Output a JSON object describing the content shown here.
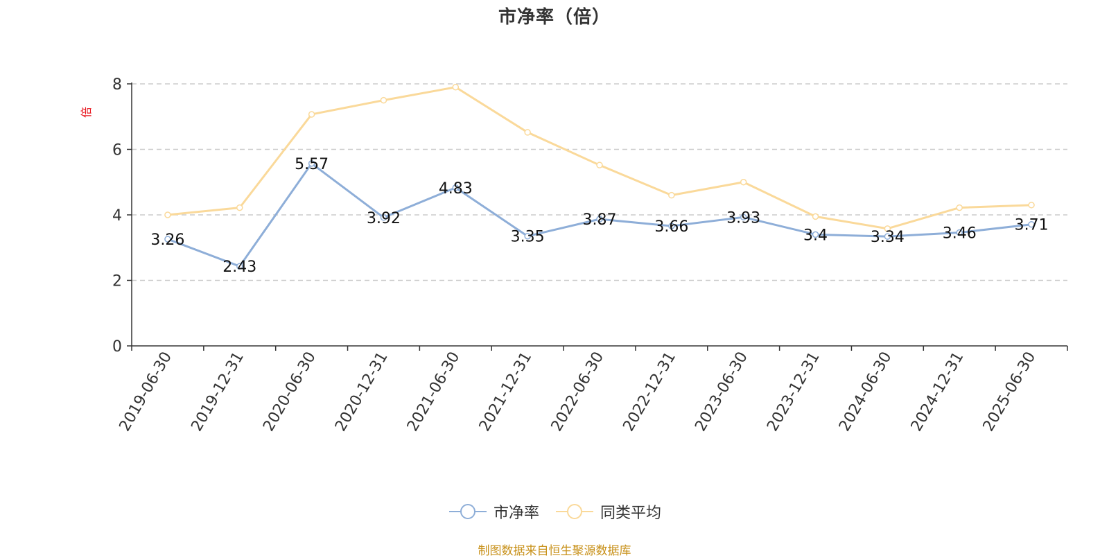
{
  "chart_data": {
    "type": "line",
    "title": "市净率（倍）",
    "ylabel": "倍",
    "xlabel": "",
    "ylim": [
      0,
      8
    ],
    "yticks": [
      0,
      2,
      4,
      6,
      8
    ],
    "grid": true,
    "legend_position": "bottom",
    "categories": [
      "2019-06-30",
      "2019-12-31",
      "2020-06-30",
      "2020-12-31",
      "2021-06-30",
      "2021-12-31",
      "2022-06-30",
      "2022-12-31",
      "2023-06-30",
      "2023-12-31",
      "2024-06-30",
      "2024-12-31",
      "2025-06-30"
    ],
    "series": [
      {
        "name": "市净率",
        "color": "#8eaed8",
        "show_labels": true,
        "values": [
          3.26,
          2.43,
          5.57,
          3.92,
          4.83,
          3.35,
          3.87,
          3.66,
          3.93,
          3.4,
          3.34,
          3.46,
          3.71
        ],
        "labels": [
          "3.26",
          "2.43",
          "5.57",
          "3.92",
          "4.83",
          "3.35",
          "3.87",
          "3.66",
          "3.93",
          "3.4",
          "3.34",
          "3.46",
          "3.71"
        ]
      },
      {
        "name": "同类平均",
        "color": "#fad99a",
        "show_labels": false,
        "values": [
          4.0,
          4.22,
          7.07,
          7.5,
          7.9,
          6.52,
          5.52,
          4.6,
          5.0,
          3.95,
          3.58,
          4.22,
          4.3
        ]
      }
    ]
  },
  "source_note": "制图数据来自恒生聚源数据库"
}
